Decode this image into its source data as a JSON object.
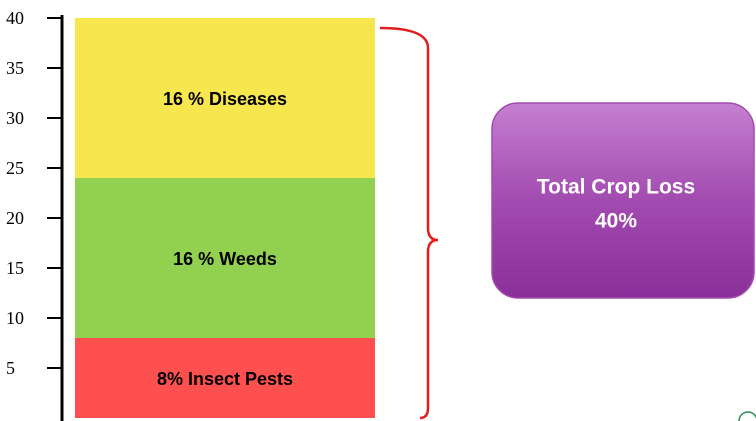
{
  "chart_data": {
    "type": "stacked_bar",
    "categories": [
      null
    ],
    "series": [
      {
        "color": "#ff5050",
        "values": [
          8
        ],
        "value_labels": [
          "8%  Insect Pests"
        ]
      },
      {
        "color": "#92d050",
        "values": [
          16
        ],
        "value_labels": [
          "16 % Weeds"
        ]
      },
      {
        "color": "#f7e64e",
        "values": [
          16
        ],
        "value_labels": [
          "16 % Diseases"
        ]
      }
    ],
    "ylim": [
      0,
      40
    ],
    "yticks": [
      5,
      10,
      15,
      20,
      25,
      30,
      35,
      40
    ],
    "annotation": {
      "lines": [
        "Total Crop Loss",
        "40%"
      ],
      "color": "#a24bb0",
      "brace_color": "#e02020"
    }
  }
}
